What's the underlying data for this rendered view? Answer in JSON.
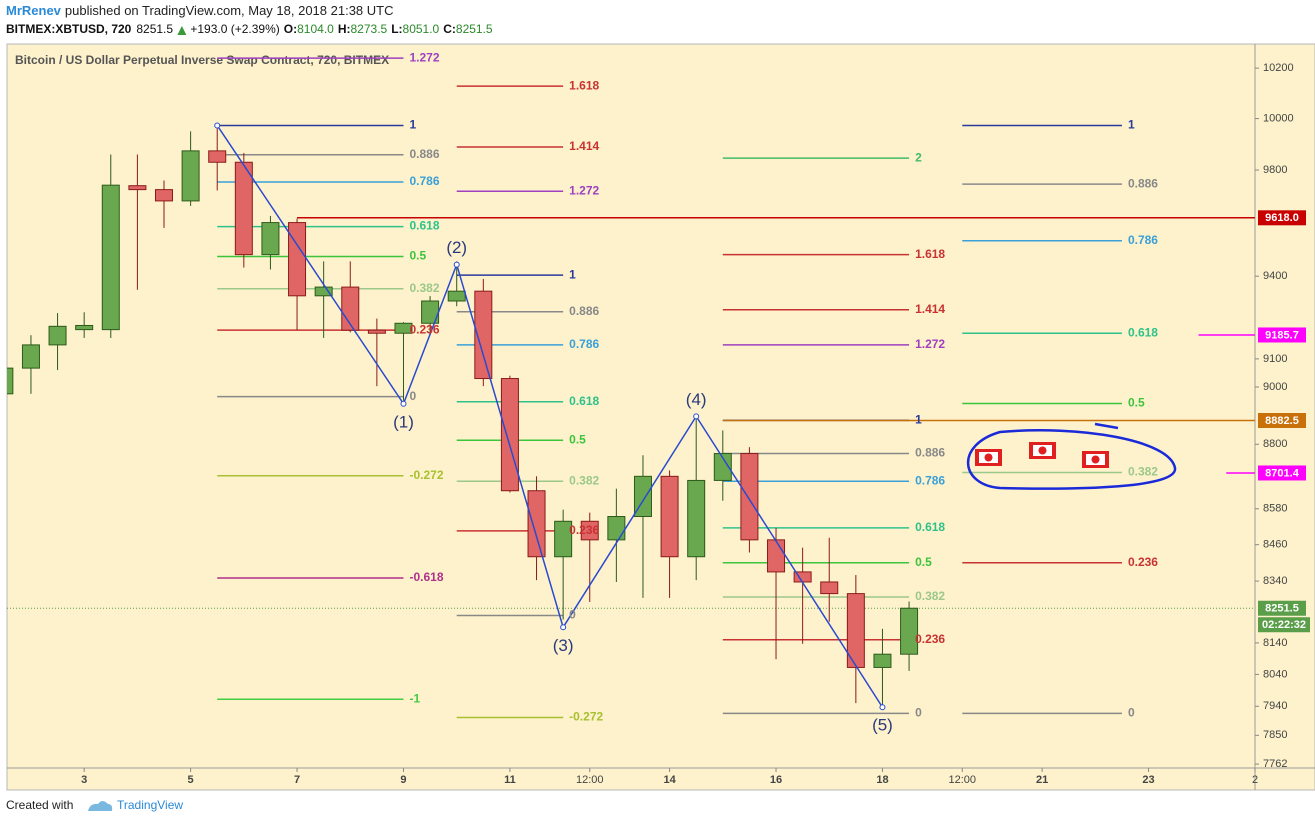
{
  "header": {
    "author": "MrRenev",
    "published": "published on TradingView.com, May 18, 2018 21:38 UTC",
    "symbol": "BITMEX:XBTUSD, 720",
    "last": "8251.5",
    "change": "+193.0 (+2.39%)",
    "ohlc": [
      {
        "label": "O:",
        "value": "8104.0"
      },
      {
        "label": "H:",
        "value": "8273.5"
      },
      {
        "label": "L:",
        "value": "8051.0"
      },
      {
        "label": "C:",
        "value": "8251.5"
      }
    ]
  },
  "footer": {
    "created": "Created with",
    "brand": "TradingView"
  },
  "chart_data": {
    "type": "candlestick",
    "title": "Bitcoin / US Dollar Perpetual Inverse Swap Contract, 720, BITMEX",
    "x": [
      1.5,
      2,
      2.5,
      3,
      3.5,
      4,
      4.5,
      5,
      5.5,
      6,
      6.5,
      7,
      7.5,
      8,
      8.5,
      9,
      9.5,
      10,
      10.5,
      11,
      11.5,
      12,
      12.5,
      13,
      13.5,
      14,
      14.5,
      15,
      15.5,
      16,
      16.5,
      17,
      17.5,
      18,
      18.5
    ],
    "open": [
      8976,
      9067,
      9150,
      9205,
      9205,
      9740,
      9725,
      9682,
      9874,
      9830,
      9480,
      9600,
      9328,
      9360,
      9203,
      9192,
      9228,
      9309,
      9345,
      9030,
      8641,
      8420,
      8538,
      8476,
      8554,
      8690,
      8420,
      8676,
      8768,
      8476,
      8370,
      8337,
      8299,
      8062,
      8104
    ],
    "high": [
      9075,
      9185,
      9265,
      9268,
      9860,
      9860,
      9760,
      9950,
      9976,
      9866,
      9625,
      9615,
      9455,
      9455,
      9245,
      9232,
      9327,
      9455,
      9390,
      9040,
      8690,
      8577,
      8567,
      8648,
      8762,
      8710,
      8893,
      8848,
      8790,
      8516,
      8450,
      8483,
      8360,
      8185,
      8273.5
    ],
    "low": [
      8970,
      8976,
      9060,
      9175,
      9175,
      9350,
      9580,
      9663,
      9722,
      9432,
      9425,
      9203,
      9175,
      9195,
      9003,
      8952,
      9185,
      9290,
      9003,
      8635,
      8343,
      8215,
      8272,
      8337,
      8285,
      8285,
      8343,
      8607,
      8434,
      8088,
      8137,
      8208,
      7950,
      7940,
      8051
    ],
    "close": [
      9067,
      9150,
      9217,
      9220,
      9742,
      9725,
      9682,
      9874,
      9830,
      9480,
      9600,
      9328,
      9360,
      9203,
      9192,
      9228,
      9309,
      9345,
      9030,
      8641,
      8420,
      8538,
      8476,
      8554,
      8690,
      8420,
      8676,
      8768,
      8476,
      8370,
      8337,
      8299,
      8062,
      8104,
      8251.5
    ],
    "up_color": "#6aa84f",
    "up_border": "#2d5a1b",
    "down_color": "#e06666",
    "down_border": "#8b1a1a",
    "xlim": [
      1.55,
      25
    ],
    "xticks": [
      3,
      5,
      7,
      9,
      11,
      {
        "value": 12.5,
        "label": "12:00"
      },
      14,
      16,
      18,
      {
        "value": 19.5,
        "label": "12:00"
      },
      21,
      23,
      {
        "value": 25,
        "label": "2"
      }
    ],
    "log": true,
    "ylim": [
      7750,
      10297
    ],
    "yticks": [
      10200,
      10000,
      9800,
      9400,
      9100,
      9000,
      8800,
      8580,
      8460,
      8340,
      8140,
      8040,
      7940,
      7850,
      7762
    ],
    "fib_sets": [
      {
        "x": [
          5.5,
          9
        ],
        "levels": [
          {
            "ratio": 1.272,
            "price": 10240,
            "color": "#a040c0"
          },
          {
            "ratio": 1,
            "price": 9973,
            "color": "#2a3a9c"
          },
          {
            "ratio": 0.886,
            "price": 9859,
            "color": "#888888"
          },
          {
            "ratio": 0.786,
            "price": 9754,
            "color": "#3aa0d8"
          },
          {
            "ratio": 0.618,
            "price": 9585,
            "color": "#2ec28a"
          },
          {
            "ratio": 0.5,
            "price": 9473,
            "color": "#3cc43c"
          },
          {
            "ratio": 0.382,
            "price": 9354,
            "color": "#9cc88a"
          },
          {
            "ratio": 0.236,
            "price": 9203,
            "color": "#c83232"
          },
          {
            "ratio": 0,
            "price": 8966,
            "color": "#888888"
          },
          {
            "ratio": -0.272,
            "price": 8692,
            "color": "#a8c030"
          },
          {
            "ratio": -0.618,
            "price": 8350,
            "color": "#b0308c"
          },
          {
            "ratio": -1,
            "price": 7962,
            "color": "#44cc44"
          }
        ]
      },
      {
        "x": [
          10,
          12
        ],
        "levels": [
          {
            "ratio": 1.618,
            "price": 10128,
            "color": "#c83232"
          },
          {
            "ratio": 1.414,
            "price": 9889,
            "color": "#c83232"
          },
          {
            "ratio": 1.272,
            "price": 9719,
            "color": "#a040c0"
          },
          {
            "ratio": 1,
            "price": 9404,
            "color": "#2a3a9c"
          },
          {
            "ratio": 0.886,
            "price": 9270,
            "color": "#888888"
          },
          {
            "ratio": 0.786,
            "price": 9150,
            "color": "#3aa0d8"
          },
          {
            "ratio": 0.618,
            "price": 8948,
            "color": "#2ec28a"
          },
          {
            "ratio": 0.5,
            "price": 8814,
            "color": "#3cc43c"
          },
          {
            "ratio": 0.382,
            "price": 8673,
            "color": "#9cc88a"
          },
          {
            "ratio": 0.236,
            "price": 8506,
            "color": "#c83232"
          },
          {
            "ratio": 0,
            "price": 8228,
            "color": "#888888"
          },
          {
            "ratio": -0.272,
            "price": 7905,
            "color": "#a8c030"
          }
        ]
      },
      {
        "x": [
          15,
          18.5
        ],
        "levels": [
          {
            "ratio": 2,
            "price": 9846,
            "color": "#44bb66"
          },
          {
            "ratio": 1.618,
            "price": 9480,
            "color": "#c83232"
          },
          {
            "ratio": 1.414,
            "price": 9277,
            "color": "#c83232"
          },
          {
            "ratio": 1.272,
            "price": 9150,
            "color": "#a040c0"
          },
          {
            "ratio": 1,
            "price": 8883,
            "color": "#2a3a9c"
          },
          {
            "ratio": 0.886,
            "price": 8768,
            "color": "#888888"
          },
          {
            "ratio": 0.786,
            "price": 8673,
            "color": "#3aa0d8"
          },
          {
            "ratio": 0.618,
            "price": 8516,
            "color": "#2ec28a"
          },
          {
            "ratio": 0.5,
            "price": 8400,
            "color": "#3cc43c"
          },
          {
            "ratio": 0.382,
            "price": 8288,
            "color": "#9cc88a"
          },
          {
            "ratio": 0.236,
            "price": 8150,
            "color": "#c83232"
          },
          {
            "ratio": 0,
            "price": 7918,
            "color": "#888888"
          }
        ]
      },
      {
        "x": [
          19.5,
          22.5
        ],
        "levels": [
          {
            "ratio": 1,
            "price": 9973,
            "color": "#2a3a9c"
          },
          {
            "ratio": 0.886,
            "price": 9746,
            "color": "#888888"
          },
          {
            "ratio": 0.786,
            "price": 9532,
            "color": "#3aa0d8"
          },
          {
            "ratio": 0.618,
            "price": 9192,
            "color": "#2ec28a"
          },
          {
            "ratio": 0.5,
            "price": 8942,
            "color": "#3cc43c"
          },
          {
            "ratio": 0.382,
            "price": 8703,
            "color": "#9cc88a"
          },
          {
            "ratio": 0.236,
            "price": 8400,
            "color": "#c83232"
          },
          {
            "ratio": 0,
            "price": 7918,
            "color": "#888888"
          }
        ]
      }
    ],
    "horizontal_lines": [
      {
        "price": 9618,
        "label": "9618.0",
        "start": 7,
        "color": "#c80000"
      },
      {
        "price": 9185.7,
        "label": "9185.7",
        "start": 23.94,
        "color": "#ff00ff"
      },
      {
        "price": 8882.5,
        "label": "8882.5",
        "start": 15,
        "color": "#c8700a"
      },
      {
        "price": 8701.4,
        "label": "8701.4",
        "start": 24.46,
        "color": "#ff00ff"
      }
    ],
    "zigzag": {
      "color": "#2a4ad0",
      "x": [
        5.5,
        9,
        10,
        12,
        14.5,
        18
      ],
      "y": [
        9973,
        8941,
        9443,
        8190,
        8897,
        7937
      ],
      "labels": [
        null,
        "(1)",
        "(2)",
        "(3)",
        "(4)",
        "(5)"
      ]
    },
    "last_price": {
      "value": 8251.5,
      "label": "8251.5",
      "countdown": "02:22:32",
      "color": "#5a9e4a"
    }
  }
}
